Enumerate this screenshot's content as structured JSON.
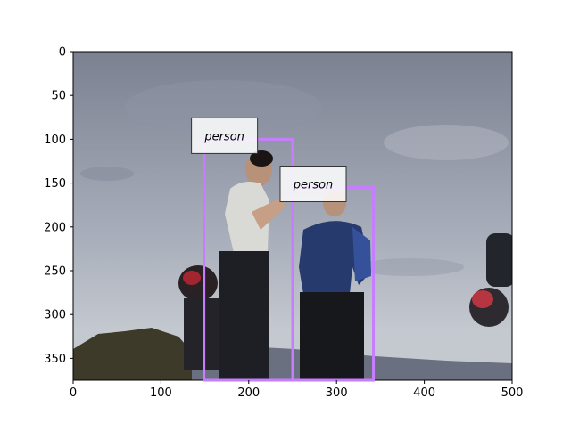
{
  "chart_data": {
    "type": "image-annotation",
    "title": "",
    "xlabel": "",
    "ylabel": "",
    "xlim": [
      0,
      500
    ],
    "ylim": [
      375,
      0
    ],
    "xticks": [
      0,
      100,
      200,
      300,
      400,
      500
    ],
    "yticks": [
      0,
      50,
      100,
      150,
      200,
      250,
      300,
      350
    ],
    "box_color": "#c77dff",
    "boxes": [
      {
        "label": "person",
        "xmin": 149,
        "ymin": 100,
        "xmax": 250,
        "ymax": 375
      },
      {
        "label": "person",
        "xmin": 250,
        "ymin": 155,
        "xmax": 342,
        "ymax": 375
      }
    ],
    "photo": {
      "sky_top": "#7c8192",
      "sky_mid": "#a7adb9",
      "sky_low": "#c4c8cf",
      "ground": "#3d3a2a",
      "figure": "#1d1f24",
      "shirt": "#d9d9d6",
      "jacket_blue": "#273a6e"
    }
  }
}
